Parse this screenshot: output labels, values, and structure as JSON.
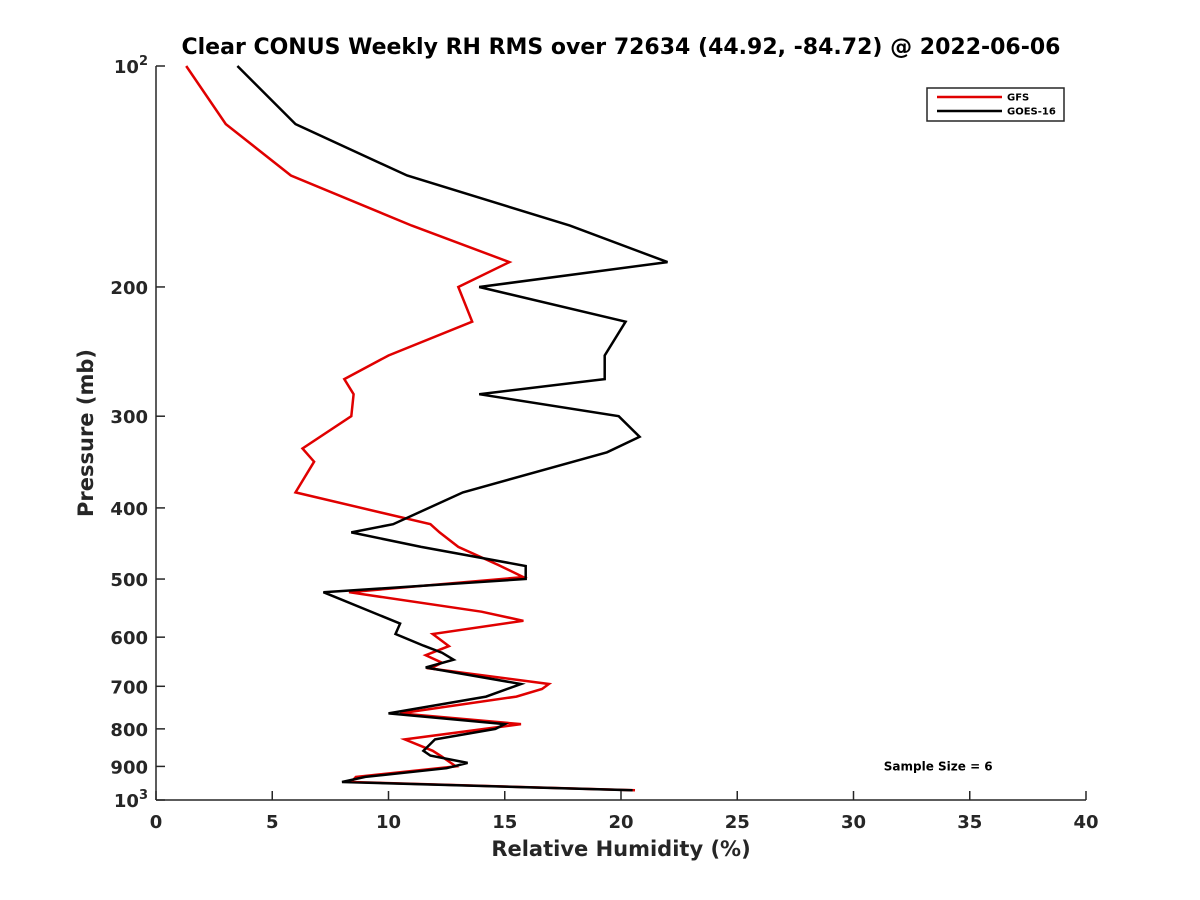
{
  "chart_data": {
    "type": "line",
    "title": "Clear CONUS Weekly RH RMS over 72634 (44.92, -84.72) @ 2022-06-06",
    "xlabel": "Relative Humidity (%)",
    "ylabel": "Pressure (mb)",
    "xlim": [
      0,
      40
    ],
    "ylim": [
      100,
      1000
    ],
    "yscale": "log",
    "y_reversed": true,
    "x_ticks": [
      "0",
      "5",
      "10",
      "15",
      "20",
      "25",
      "30",
      "35",
      "40"
    ],
    "x_tick_values": [
      0,
      5,
      10,
      15,
      20,
      25,
      30,
      35,
      40
    ],
    "y_ticks": [
      {
        "value": 100,
        "base": "10",
        "exp": "2"
      },
      {
        "value": 200,
        "base": "200",
        "exp": ""
      },
      {
        "value": 300,
        "base": "300",
        "exp": ""
      },
      {
        "value": 400,
        "base": "400",
        "exp": ""
      },
      {
        "value": 500,
        "base": "500",
        "exp": ""
      },
      {
        "value": 600,
        "base": "600",
        "exp": ""
      },
      {
        "value": 700,
        "base": "700",
        "exp": ""
      },
      {
        "value": 800,
        "base": "800",
        "exp": ""
      },
      {
        "value": 900,
        "base": "900",
        "exp": ""
      },
      {
        "value": 1000,
        "base": "10",
        "exp": "3"
      }
    ],
    "grid": false,
    "legend_position": "top-right",
    "series": [
      {
        "name": "GFS",
        "color": "#e00000",
        "points": [
          [
            1.3,
            100
          ],
          [
            3.0,
            120
          ],
          [
            5.8,
            141
          ],
          [
            11.0,
            165
          ],
          [
            15.2,
            185
          ],
          [
            13.0,
            200
          ],
          [
            13.6,
            223
          ],
          [
            10.0,
            248
          ],
          [
            8.1,
            267
          ],
          [
            8.5,
            280
          ],
          [
            8.4,
            300
          ],
          [
            6.3,
            332
          ],
          [
            6.8,
            346
          ],
          [
            6.0,
            381
          ],
          [
            11.8,
            421
          ],
          [
            12.2,
            432
          ],
          [
            13.0,
            452
          ],
          [
            14.7,
            478
          ],
          [
            15.8,
            497
          ],
          [
            8.3,
            521
          ],
          [
            14.0,
            554
          ],
          [
            15.8,
            570
          ],
          [
            11.9,
            594
          ],
          [
            12.6,
            617
          ],
          [
            11.6,
            635
          ],
          [
            12.3,
            650
          ],
          [
            11.8,
            662
          ],
          [
            16.9,
            695
          ],
          [
            16.6,
            706
          ],
          [
            15.5,
            723
          ],
          [
            10.5,
            762
          ],
          [
            15.7,
            788
          ],
          [
            10.7,
            827
          ],
          [
            11.9,
            857
          ],
          [
            12.3,
            873
          ],
          [
            12.9,
            900
          ],
          [
            8.6,
            930
          ],
          [
            8.4,
            945
          ],
          [
            20.6,
            970
          ]
        ]
      },
      {
        "name": "GOES-16",
        "color": "#000000",
        "points": [
          [
            3.5,
            100
          ],
          [
            6.0,
            120
          ],
          [
            10.8,
            141
          ],
          [
            17.8,
            165
          ],
          [
            22.0,
            185
          ],
          [
            13.9,
            200
          ],
          [
            20.2,
            223
          ],
          [
            19.3,
            248
          ],
          [
            19.3,
            267
          ],
          [
            13.9,
            280
          ],
          [
            19.9,
            300
          ],
          [
            20.8,
            320
          ],
          [
            19.4,
            336
          ],
          [
            13.2,
            381
          ],
          [
            10.2,
            421
          ],
          [
            8.4,
            432
          ],
          [
            11.4,
            452
          ],
          [
            15.9,
            480
          ],
          [
            15.9,
            500
          ],
          [
            7.2,
            521
          ],
          [
            10.5,
            575
          ],
          [
            10.3,
            594
          ],
          [
            11.5,
            616
          ],
          [
            12.3,
            630
          ],
          [
            12.8,
            644
          ],
          [
            11.6,
            660
          ],
          [
            15.7,
            695
          ],
          [
            14.2,
            723
          ],
          [
            10.0,
            762
          ],
          [
            15.0,
            788
          ],
          [
            14.6,
            800
          ],
          [
            12.0,
            827
          ],
          [
            11.5,
            857
          ],
          [
            11.8,
            870
          ],
          [
            13.4,
            890
          ],
          [
            12.5,
            905
          ],
          [
            9.0,
            930
          ],
          [
            8.0,
            945
          ],
          [
            20.5,
            970
          ]
        ]
      }
    ],
    "annotations": [
      {
        "text": "Sample Size = 6",
        "x": 35,
        "y": 900
      }
    ]
  }
}
